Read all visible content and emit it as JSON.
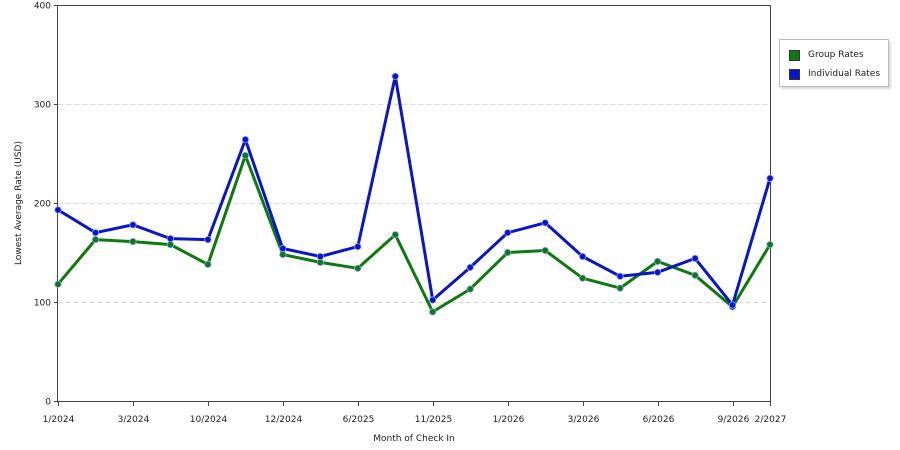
{
  "chart_data": {
    "type": "line",
    "title": "",
    "xlabel": "Month of Check In",
    "ylabel": "Lowest Average Rate (USD)",
    "ylim": [
      0,
      400
    ],
    "yticks": [
      0,
      100,
      200,
      300,
      400
    ],
    "grid": "horizontal dashed",
    "legend_position": "right",
    "x_tick_labels": [
      {
        "index": 0,
        "label": "1/2024"
      },
      {
        "index": 2,
        "label": "3/2024"
      },
      {
        "index": 4,
        "label": "10/2024"
      },
      {
        "index": 6,
        "label": "12/2024"
      },
      {
        "index": 8,
        "label": "6/2025"
      },
      {
        "index": 10,
        "label": "11/2025"
      },
      {
        "index": 12,
        "label": "1/2026"
      },
      {
        "index": 14,
        "label": "3/2026"
      },
      {
        "index": 16,
        "label": "6/2026"
      },
      {
        "index": 18,
        "label": "9/2026"
      },
      {
        "index": 19,
        "label": "2/2027"
      }
    ],
    "series": [
      {
        "name": "Group Rates",
        "color": "#0e7a0e",
        "values": [
          118,
          163,
          161,
          158,
          138,
          248,
          148,
          140,
          134,
          168,
          90,
          113,
          150,
          152,
          124,
          114,
          141,
          127,
          95,
          158
        ]
      },
      {
        "name": "Individual Rates",
        "color": "#0a14c8",
        "values": [
          193,
          170,
          178,
          164,
          163,
          264,
          154,
          146,
          156,
          328,
          102,
          135,
          170,
          180,
          146,
          126,
          130,
          144,
          97,
          225
        ]
      }
    ]
  }
}
